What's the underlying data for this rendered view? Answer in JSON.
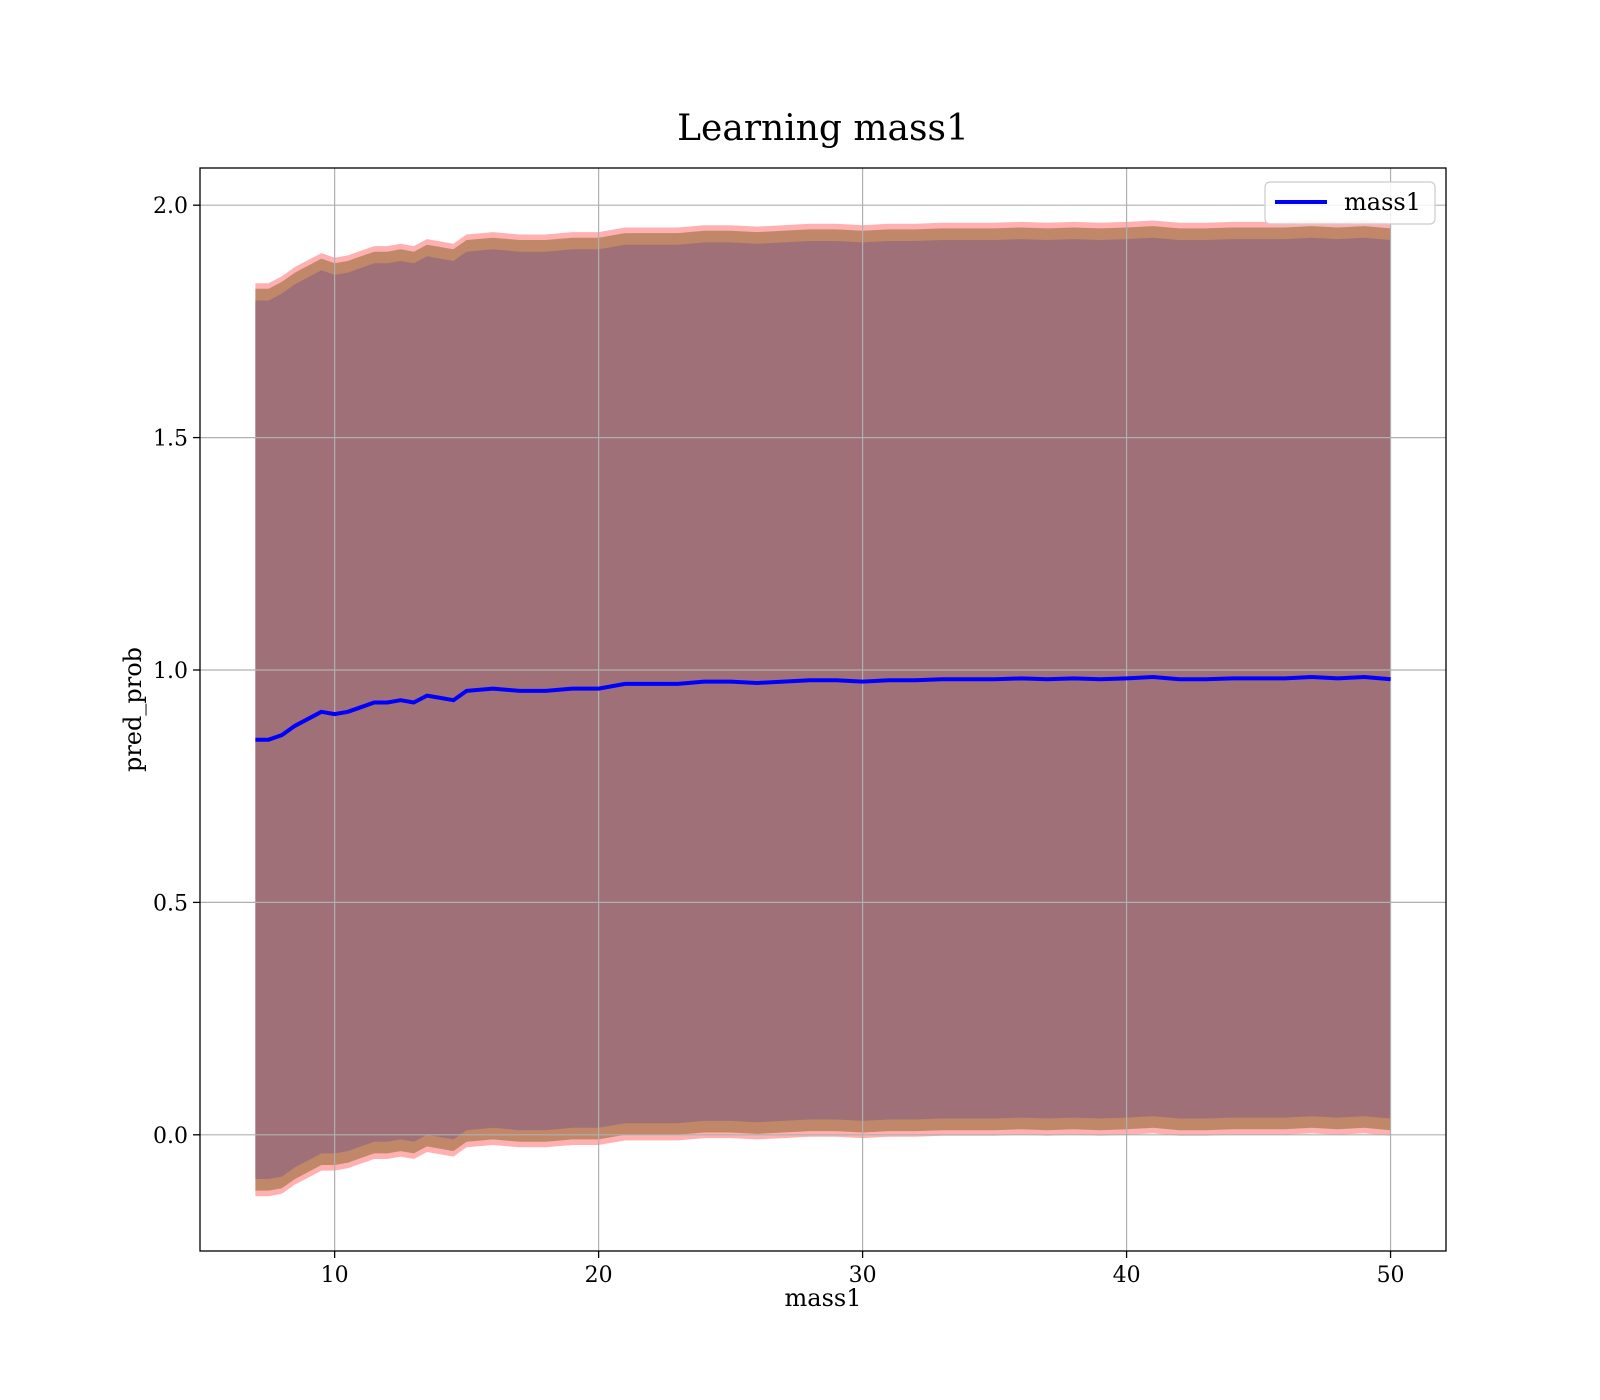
{
  "chart_data": {
    "type": "line",
    "title": "Learning mass1",
    "xlabel": "mass1",
    "ylabel": "pred_prob",
    "xlim": [
      4.9,
      52.1
    ],
    "ylim": [
      -0.25,
      2.08
    ],
    "xticks": [
      10,
      20,
      30,
      40,
      50
    ],
    "yticks": [
      0.0,
      0.5,
      1.0,
      1.5,
      2.0
    ],
    "grid": true,
    "legend": {
      "placement": "top-right",
      "entries": [
        "mass1"
      ]
    },
    "colors": {
      "line": "#0000ff",
      "band_inner": "#a07078",
      "band_edge": "#c08868",
      "band_outline": "#ff6f6f",
      "grid": "#b0b0b0"
    },
    "series": [
      {
        "name": "mass1",
        "x": [
          7,
          7.5,
          8,
          8.5,
          9,
          9.5,
          10,
          10.5,
          11,
          11.5,
          12,
          12.5,
          13,
          13.5,
          14,
          14.5,
          15,
          16,
          17,
          18,
          19,
          20,
          21,
          22,
          23,
          24,
          25,
          26,
          27,
          28,
          29,
          30,
          31,
          32,
          33,
          34,
          35,
          36,
          37,
          38,
          39,
          40,
          41,
          42,
          43,
          44,
          45,
          46,
          47,
          48,
          49,
          50
        ],
        "y": [
          0.85,
          0.85,
          0.86,
          0.88,
          0.895,
          0.91,
          0.905,
          0.91,
          0.92,
          0.93,
          0.93,
          0.935,
          0.93,
          0.945,
          0.94,
          0.935,
          0.955,
          0.96,
          0.955,
          0.955,
          0.96,
          0.96,
          0.97,
          0.97,
          0.97,
          0.975,
          0.975,
          0.972,
          0.975,
          0.978,
          0.978,
          0.975,
          0.978,
          0.978,
          0.98,
          0.98,
          0.98,
          0.982,
          0.98,
          0.982,
          0.98,
          0.982,
          0.985,
          0.98,
          0.98,
          0.982,
          0.982,
          0.982,
          0.985,
          0.982,
          0.985,
          0.98
        ],
        "upper": [
          1.82,
          1.82,
          1.835,
          1.855,
          1.87,
          1.885,
          1.875,
          1.88,
          1.89,
          1.9,
          1.9,
          1.905,
          1.9,
          1.915,
          1.91,
          1.905,
          1.925,
          1.93,
          1.925,
          1.925,
          1.93,
          1.93,
          1.94,
          1.94,
          1.94,
          1.945,
          1.945,
          1.942,
          1.945,
          1.948,
          1.948,
          1.945,
          1.948,
          1.948,
          1.95,
          1.95,
          1.95,
          1.952,
          1.95,
          1.952,
          1.95,
          1.952,
          1.955,
          1.95,
          1.95,
          1.952,
          1.952,
          1.952,
          1.955,
          1.952,
          1.955,
          1.95
        ],
        "lower": [
          -0.12,
          -0.12,
          -0.115,
          -0.095,
          -0.08,
          -0.065,
          -0.065,
          -0.06,
          -0.05,
          -0.04,
          -0.04,
          -0.035,
          -0.04,
          -0.025,
          -0.03,
          -0.035,
          -0.015,
          -0.01,
          -0.015,
          -0.015,
          -0.01,
          -0.01,
          0.0,
          0.0,
          0.0,
          0.005,
          0.005,
          0.002,
          0.005,
          0.008,
          0.008,
          0.005,
          0.008,
          0.008,
          0.01,
          0.01,
          0.01,
          0.012,
          0.01,
          0.012,
          0.01,
          0.012,
          0.015,
          0.01,
          0.01,
          0.012,
          0.012,
          0.012,
          0.015,
          0.012,
          0.015,
          0.01
        ]
      }
    ]
  }
}
